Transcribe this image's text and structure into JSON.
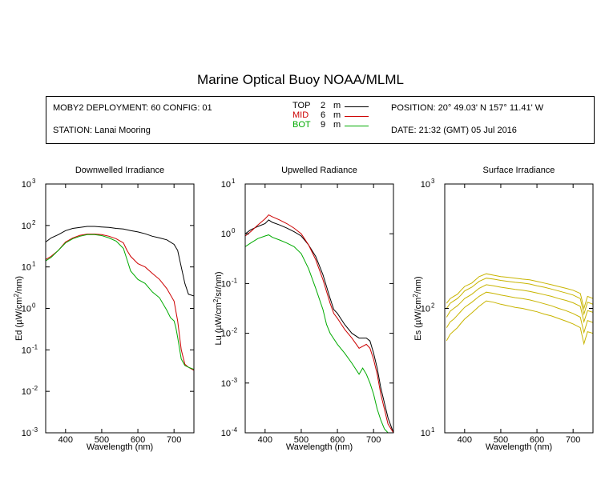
{
  "title": "Marine Optical Buoy NOAA/MLML",
  "info": {
    "deployment": "MOBY2 DEPLOYMENT: 60 CONFIG: 01",
    "station": "STATION: Lanai Mooring",
    "position": "POSITION: 20° 49.03' N   157° 11.41' W",
    "date": "DATE: 21:32 (GMT) 05 Jul 2016"
  },
  "legend": [
    {
      "label": "TOP",
      "depth": "2",
      "unit": "m",
      "color": "#000000"
    },
    {
      "label": "MID",
      "depth": "6",
      "unit": "m",
      "color": "#cc0000"
    },
    {
      "label": "BOT",
      "depth": "9",
      "unit": "m",
      "color": "#00aa00"
    }
  ],
  "chart_data": [
    {
      "type": "line",
      "title": "Downwelled Irradiance",
      "xlabel": "Wavelength (nm)",
      "ylabel_parts": [
        "Ed  (µW/cm",
        "2",
        "/nm)"
      ],
      "xlim": [
        345,
        755
      ],
      "ylim": [
        0.001,
        1000
      ],
      "yscale": "log",
      "xticks": [
        400,
        500,
        600,
        700
      ],
      "yticks": [
        {
          "base": "10",
          "exp": "-3"
        },
        {
          "base": "10",
          "exp": "-2"
        },
        {
          "base": "10",
          "exp": "-1"
        },
        {
          "base": "10",
          "exp": "0"
        },
        {
          "base": "10",
          "exp": "1"
        },
        {
          "base": "10",
          "exp": "2"
        },
        {
          "base": "10",
          "exp": "3"
        }
      ],
      "series": [
        {
          "color": "#000000",
          "x": [
            345,
            360,
            380,
            400,
            420,
            440,
            460,
            480,
            500,
            520,
            540,
            560,
            580,
            600,
            620,
            640,
            660,
            680,
            700,
            710,
            720,
            730,
            740,
            755
          ],
          "y": [
            40,
            50,
            60,
            75,
            85,
            90,
            95,
            95,
            92,
            90,
            85,
            82,
            75,
            70,
            63,
            55,
            50,
            45,
            35,
            25,
            10,
            4,
            2.2,
            2.0
          ]
        },
        {
          "color": "#cc0000",
          "x": [
            345,
            360,
            380,
            400,
            420,
            440,
            460,
            480,
            500,
            520,
            540,
            560,
            570,
            580,
            600,
            620,
            640,
            660,
            680,
            700,
            710,
            720,
            730,
            740,
            755
          ],
          "y": [
            15,
            18,
            25,
            40,
            50,
            58,
            62,
            62,
            60,
            55,
            48,
            38,
            25,
            18,
            12,
            10,
            7,
            5,
            3,
            1.5,
            0.5,
            0.1,
            0.045,
            0.038,
            0.032
          ]
        },
        {
          "color": "#00aa00",
          "x": [
            345,
            360,
            380,
            400,
            420,
            440,
            460,
            480,
            500,
            520,
            540,
            560,
            570,
            580,
            600,
            620,
            640,
            660,
            680,
            690,
            700,
            705,
            710,
            720,
            730,
            740,
            755
          ],
          "y": [
            14,
            17,
            25,
            38,
            48,
            55,
            60,
            60,
            57,
            50,
            42,
            28,
            15,
            8,
            5,
            4,
            2.5,
            1.8,
            0.9,
            0.6,
            0.5,
            0.35,
            0.2,
            0.06,
            0.042,
            0.038,
            0.034
          ]
        }
      ]
    },
    {
      "type": "line",
      "title": "Upwelled Radiance",
      "xlabel": "Wavelength (nm)",
      "ylabel_parts": [
        "Lu  (µW/cm",
        "2",
        "/sr/nm)"
      ],
      "xlim": [
        345,
        755
      ],
      "ylim": [
        0.0001,
        10
      ],
      "yscale": "log",
      "xticks": [
        400,
        500,
        600,
        700
      ],
      "yticks": [
        {
          "base": "10",
          "exp": "-4"
        },
        {
          "base": "10",
          "exp": "-3"
        },
        {
          "base": "10",
          "exp": "-2"
        },
        {
          "base": "10",
          "exp": "-1"
        },
        {
          "base": "10",
          "exp": "0"
        },
        {
          "base": "10",
          "exp": "1"
        }
      ],
      "series": [
        {
          "color": "#000000",
          "x": [
            345,
            360,
            380,
            400,
            410,
            420,
            440,
            460,
            480,
            500,
            520,
            540,
            560,
            580,
            590,
            600,
            620,
            640,
            660,
            680,
            690,
            700,
            710,
            720,
            730,
            740,
            755
          ],
          "y": [
            1.0,
            1.2,
            1.4,
            1.6,
            1.9,
            1.7,
            1.5,
            1.3,
            1.1,
            0.9,
            0.6,
            0.35,
            0.15,
            0.05,
            0.03,
            0.025,
            0.015,
            0.01,
            0.008,
            0.008,
            0.007,
            0.004,
            0.002,
            0.0008,
            0.0004,
            0.0002,
            0.0001
          ]
        },
        {
          "color": "#cc0000",
          "x": [
            345,
            360,
            380,
            400,
            410,
            420,
            440,
            460,
            480,
            500,
            520,
            540,
            560,
            580,
            590,
            600,
            620,
            640,
            660,
            680,
            690,
            700,
            710,
            720,
            730,
            740,
            755
          ],
          "y": [
            0.9,
            1.1,
            1.5,
            2.0,
            2.4,
            2.2,
            1.9,
            1.6,
            1.3,
            1.0,
            0.6,
            0.3,
            0.12,
            0.04,
            0.025,
            0.02,
            0.012,
            0.008,
            0.005,
            0.006,
            0.005,
            0.003,
            0.0015,
            0.0006,
            0.0003,
            0.00015,
            0.0001
          ]
        },
        {
          "color": "#00aa00",
          "x": [
            345,
            360,
            380,
            400,
            410,
            420,
            440,
            460,
            480,
            500,
            520,
            540,
            560,
            570,
            580,
            600,
            620,
            640,
            660,
            670,
            680,
            690,
            700,
            710,
            720,
            730,
            740,
            755
          ],
          "y": [
            0.55,
            0.65,
            0.8,
            0.9,
            0.95,
            0.85,
            0.75,
            0.65,
            0.55,
            0.4,
            0.2,
            0.08,
            0.03,
            0.015,
            0.01,
            0.006,
            0.004,
            0.0025,
            0.0015,
            0.002,
            0.0015,
            0.001,
            0.0006,
            0.0003,
            0.00018,
            0.00012,
            0.0001,
            0.0001
          ]
        }
      ]
    },
    {
      "type": "line",
      "title": "Surface Irradiance",
      "xlabel": "Wavelength (nm)",
      "ylabel_parts": [
        "Es  (µW/cm",
        "2",
        "/nm)"
      ],
      "xlim": [
        345,
        755
      ],
      "ylim": [
        10,
        1000
      ],
      "yscale": "log",
      "xticks": [
        400,
        500,
        600,
        700
      ],
      "yticks": [
        {
          "base": "10",
          "exp": "1"
        },
        {
          "base": "10",
          "exp": "2"
        },
        {
          "base": "10",
          "exp": "3"
        }
      ],
      "series": [
        {
          "color": "#c8b400",
          "x": [
            350,
            360,
            370,
            380,
            390,
            400,
            420,
            440,
            460,
            480,
            500,
            520,
            540,
            560,
            580,
            600,
            620,
            640,
            660,
            680,
            700,
            720,
            730,
            740,
            755
          ],
          "y": [
            110,
            120,
            125,
            130,
            140,
            150,
            160,
            180,
            190,
            185,
            180,
            178,
            175,
            172,
            170,
            165,
            160,
            155,
            150,
            145,
            140,
            132,
            100,
            125,
            120
          ]
        },
        {
          "color": "#c8b400",
          "x": [
            350,
            360,
            370,
            380,
            390,
            400,
            420,
            440,
            460,
            480,
            500,
            520,
            540,
            560,
            580,
            600,
            620,
            640,
            660,
            680,
            700,
            720,
            730,
            740,
            755
          ],
          "y": [
            100,
            110,
            115,
            120,
            128,
            138,
            148,
            165,
            175,
            172,
            168,
            165,
            162,
            160,
            157,
            152,
            148,
            143,
            138,
            133,
            128,
            120,
            90,
            112,
            108
          ]
        },
        {
          "color": "#c8b400",
          "x": [
            350,
            360,
            370,
            380,
            390,
            400,
            420,
            440,
            460,
            480,
            500,
            520,
            540,
            560,
            580,
            600,
            620,
            640,
            660,
            680,
            700,
            720,
            730,
            740,
            755
          ],
          "y": [
            85,
            95,
            100,
            105,
            112,
            120,
            130,
            145,
            155,
            152,
            148,
            145,
            142,
            140,
            137,
            133,
            129,
            125,
            120,
            116,
            111,
            104,
            78,
            96,
            93
          ]
        },
        {
          "color": "#c8b400",
          "x": [
            350,
            360,
            370,
            380,
            390,
            400,
            420,
            440,
            460,
            480,
            500,
            520,
            540,
            560,
            580,
            600,
            620,
            640,
            660,
            680,
            700,
            720,
            730,
            740,
            755
          ],
          "y": [
            70,
            78,
            82,
            88,
            95,
            102,
            112,
            125,
            135,
            132,
            128,
            125,
            122,
            120,
            117,
            113,
            109,
            105,
            100,
            96,
            91,
            85,
            64,
            80,
            77
          ]
        },
        {
          "color": "#c8b400",
          "x": [
            350,
            360,
            370,
            380,
            390,
            400,
            420,
            440,
            460,
            480,
            500,
            520,
            540,
            560,
            580,
            600,
            620,
            640,
            660,
            680,
            700,
            720,
            730,
            740,
            755
          ],
          "y": [
            55,
            62,
            66,
            70,
            76,
            82,
            92,
            104,
            115,
            112,
            108,
            105,
            102,
            100,
            97,
            94,
            90,
            87,
            83,
            79,
            75,
            70,
            52,
            65,
            63
          ]
        }
      ]
    }
  ]
}
